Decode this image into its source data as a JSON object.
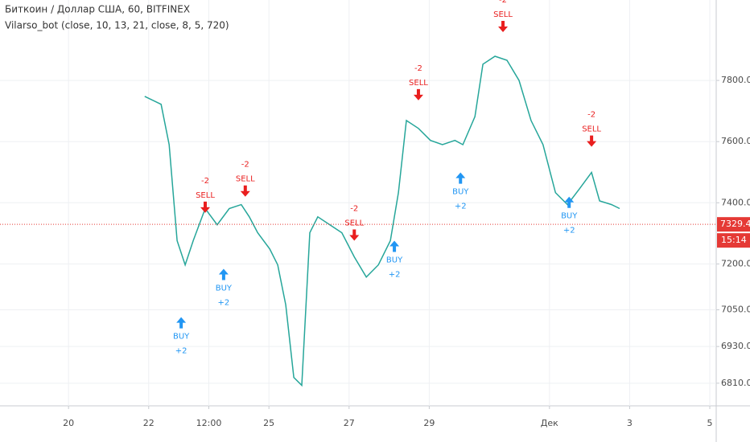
{
  "chart_data": {
    "type": "line",
    "title": "Биткоин / Доллар США, 60, BITFINEX",
    "subtitle": "Vilarso_bot (close, 10, 13, 21, close, 8, 5, 720)",
    "xlim": [
      18.29,
      36.16
    ],
    "xticks": [
      20,
      22,
      {
        "value": 23.5,
        "label": "12:00"
      },
      25,
      27,
      29,
      {
        "value": 32,
        "label": "Дек"
      },
      {
        "value": 34,
        "label": "3"
      },
      {
        "value": 36,
        "label": "5"
      }
    ],
    "ylim": [
      6736,
      8063
    ],
    "yticks": [
      {
        "value": 6810,
        "label": "6810.0"
      },
      {
        "value": 6930,
        "label": "6930.0"
      },
      {
        "value": 7050,
        "label": "7050.0"
      },
      {
        "value": 7200,
        "label": "7200.0"
      },
      {
        "value": 7400,
        "label": "7400.0"
      },
      {
        "value": 7600,
        "label": "7600.0"
      },
      {
        "value": 7800,
        "label": "7800.0"
      }
    ],
    "grid": true,
    "series": [
      {
        "color": "#26a69a",
        "x": [
          21.9,
          22.31,
          22.51,
          22.71,
          22.91,
          23.11,
          23.41,
          23.71,
          24.01,
          24.31,
          24.51,
          24.72,
          25.02,
          25.22,
          25.42,
          25.62,
          25.82,
          26.02,
          26.22,
          26.52,
          26.82,
          27.13,
          27.43,
          27.73,
          28.03,
          28.23,
          28.43,
          28.73,
          29.03,
          29.33,
          29.64,
          29.84,
          30.14,
          30.34,
          30.64,
          30.94,
          31.24,
          31.54,
          31.84,
          32.15,
          32.45,
          32.75,
          33.05,
          33.25,
          33.55,
          33.75
        ],
        "values": [
          7748,
          7722,
          7590,
          7276,
          7197,
          7276,
          7381,
          7328,
          7381,
          7394,
          7354,
          7302,
          7249,
          7197,
          7066,
          6829,
          6803,
          7302,
          7354,
          7328,
          7302,
          7223,
          7157,
          7197,
          7276,
          7433,
          7669,
          7643,
          7604,
          7590,
          7604,
          7590,
          7682,
          7853,
          7879,
          7866,
          7800,
          7669,
          7590,
          7433,
          7394,
          7446,
          7499,
          7406,
          7394,
          7381
        ]
      }
    ],
    "signals": [
      {
        "label": "BUY",
        "amount": "+2",
        "x": 22.81,
        "y": 7026
      },
      {
        "label": "BUY",
        "amount": "+2",
        "x": 23.87,
        "y": 7184
      },
      {
        "label": "BUY",
        "amount": "+2",
        "x": 28.13,
        "y": 7276
      },
      {
        "label": "BUY",
        "amount": "+2",
        "x": 29.78,
        "y": 7499
      },
      {
        "label": "BUY",
        "amount": "+2",
        "x": 32.49,
        "y": 7420
      },
      {
        "label": "SELL",
        "amount": "-2",
        "x": 23.41,
        "y": 7367
      },
      {
        "label": "SELL",
        "amount": "-2",
        "x": 24.41,
        "y": 7420
      },
      {
        "label": "SELL",
        "amount": "-2",
        "x": 27.13,
        "y": 7276
      },
      {
        "label": "SELL",
        "amount": "-2",
        "x": 28.73,
        "y": 7735
      },
      {
        "label": "SELL",
        "amount": "-2",
        "x": 30.84,
        "y": 7958
      },
      {
        "label": "SELL",
        "amount": "-2",
        "x": 33.05,
        "y": 7583
      }
    ],
    "last_price": 7329.4,
    "countdown": "15:14"
  }
}
